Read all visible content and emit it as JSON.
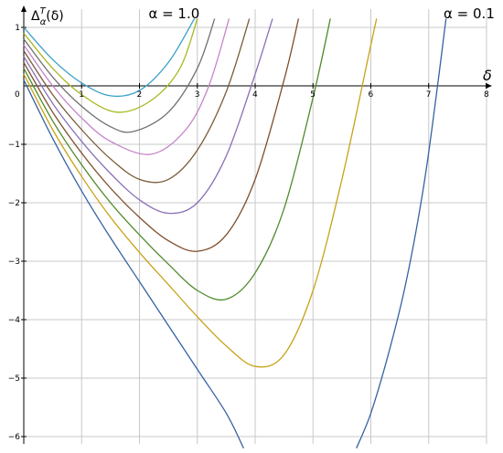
{
  "chart_data": {
    "type": "line",
    "xlabel": "δ",
    "ylabel": "Δ",
    "ylabel_sup": "T",
    "ylabel_sub": "α",
    "ylabel_arg": "(δ)",
    "origin_label": "0",
    "xlim": [
      0,
      8
    ],
    "ylim": [
      -6.2,
      1.15
    ],
    "x_ticks": [
      1,
      2,
      3,
      4,
      5,
      6,
      7,
      8
    ],
    "x_tick_labels": [
      "1",
      "2",
      "3",
      "4",
      "5",
      "6",
      "7",
      "8"
    ],
    "y_ticks": [
      1,
      -1,
      -2,
      -3,
      -4,
      -5,
      -6
    ],
    "y_tick_labels": [
      "1",
      "−1",
      "−2",
      "−3",
      "−4",
      "−5",
      "−6"
    ],
    "grid": true,
    "annotations": [
      {
        "text": "α = 1.0",
        "x": 2.6,
        "y": 1.15
      },
      {
        "text": "α = 0.1",
        "x": 7.7,
        "y": 1.15
      }
    ],
    "series": [
      {
        "alpha": 1.0,
        "color": "#3ba0c8",
        "x": [
          0,
          0.5,
          1.0,
          1.5,
          2.0,
          2.5,
          2.95
        ],
        "y": [
          1.0,
          0.45,
          0.05,
          -0.17,
          -0.08,
          0.4,
          1.15
        ]
      },
      {
        "alpha": 0.9,
        "color": "#a8b820",
        "x": [
          0,
          0.5,
          1.0,
          1.6,
          2.2,
          2.7,
          3.0
        ],
        "y": [
          0.9,
          0.3,
          -0.15,
          -0.45,
          -0.25,
          0.3,
          1.15
        ]
      },
      {
        "alpha": 0.8,
        "color": "#707070",
        "x": [
          0,
          0.5,
          1.0,
          1.5,
          1.9,
          2.5,
          3.0,
          3.3
        ],
        "y": [
          0.8,
          0.15,
          -0.35,
          -0.7,
          -0.78,
          -0.45,
          0.3,
          1.15
        ]
      },
      {
        "alpha": 0.7,
        "color": "#c483c8",
        "x": [
          0,
          0.5,
          1.0,
          1.5,
          2.2,
          2.8,
          3.2,
          3.55
        ],
        "y": [
          0.7,
          0.0,
          -0.55,
          -0.95,
          -1.17,
          -0.75,
          0.0,
          1.15
        ]
      },
      {
        "alpha": 0.6,
        "color": "#7a5c3a",
        "x": [
          0,
          0.5,
          1.0,
          1.5,
          2.0,
          2.5,
          3.0,
          3.5,
          3.9
        ],
        "y": [
          0.6,
          -0.15,
          -0.75,
          -1.25,
          -1.6,
          -1.6,
          -1.1,
          -0.1,
          1.15
        ]
      },
      {
        "alpha": 0.5,
        "color": "#8a70b8",
        "x": [
          0,
          0.5,
          1.0,
          1.5,
          2.0,
          2.5,
          3.0,
          3.5,
          4.0,
          4.3
        ],
        "y": [
          0.5,
          -0.3,
          -0.95,
          -1.5,
          -1.95,
          -2.18,
          -2.0,
          -1.2,
          0.2,
          1.15
        ]
      },
      {
        "alpha": 0.4,
        "color": "#7d4e2c",
        "x": [
          0,
          0.5,
          1.0,
          1.5,
          2.0,
          2.5,
          3.0,
          3.5,
          4.0,
          4.5,
          4.75
        ],
        "y": [
          0.4,
          -0.45,
          -1.15,
          -1.75,
          -2.25,
          -2.65,
          -2.83,
          -2.55,
          -1.6,
          0.1,
          1.15
        ]
      },
      {
        "alpha": 0.3,
        "color": "#4f8a2b",
        "x": [
          0,
          0.5,
          1.0,
          1.5,
          2.0,
          2.5,
          3.0,
          3.5,
          4.0,
          4.5,
          5.0,
          5.3
        ],
        "y": [
          0.3,
          -0.6,
          -1.35,
          -2.0,
          -2.55,
          -3.05,
          -3.5,
          -3.65,
          -3.2,
          -2.1,
          -0.2,
          1.15
        ]
      },
      {
        "alpha": 0.2,
        "color": "#c8a218",
        "x": [
          0,
          0.5,
          1.0,
          1.5,
          2.0,
          2.5,
          3.0,
          3.5,
          4.0,
          4.5,
          5.0,
          5.5,
          6.0,
          6.1
        ],
        "y": [
          0.2,
          -0.75,
          -1.55,
          -2.25,
          -2.85,
          -3.4,
          -3.95,
          -4.45,
          -4.8,
          -4.6,
          -3.5,
          -1.6,
          0.7,
          1.15
        ]
      },
      {
        "alpha": 0.1,
        "color": "#3562a2",
        "x": [
          0,
          0.5,
          1.0,
          1.5,
          2.0,
          2.5,
          3.0,
          3.5,
          3.8
        ],
        "y": [
          0.1,
          -0.9,
          -1.8,
          -2.6,
          -3.35,
          -4.1,
          -4.85,
          -5.6,
          -6.2
        ]
      },
      {
        "alpha": 0.1,
        "color": "#3562a2",
        "x": [
          5.75,
          6.0,
          6.3,
          6.6,
          6.9,
          7.1,
          7.3
        ],
        "y": [
          -6.2,
          -5.6,
          -4.6,
          -3.4,
          -1.8,
          -0.4,
          1.15
        ]
      }
    ]
  }
}
